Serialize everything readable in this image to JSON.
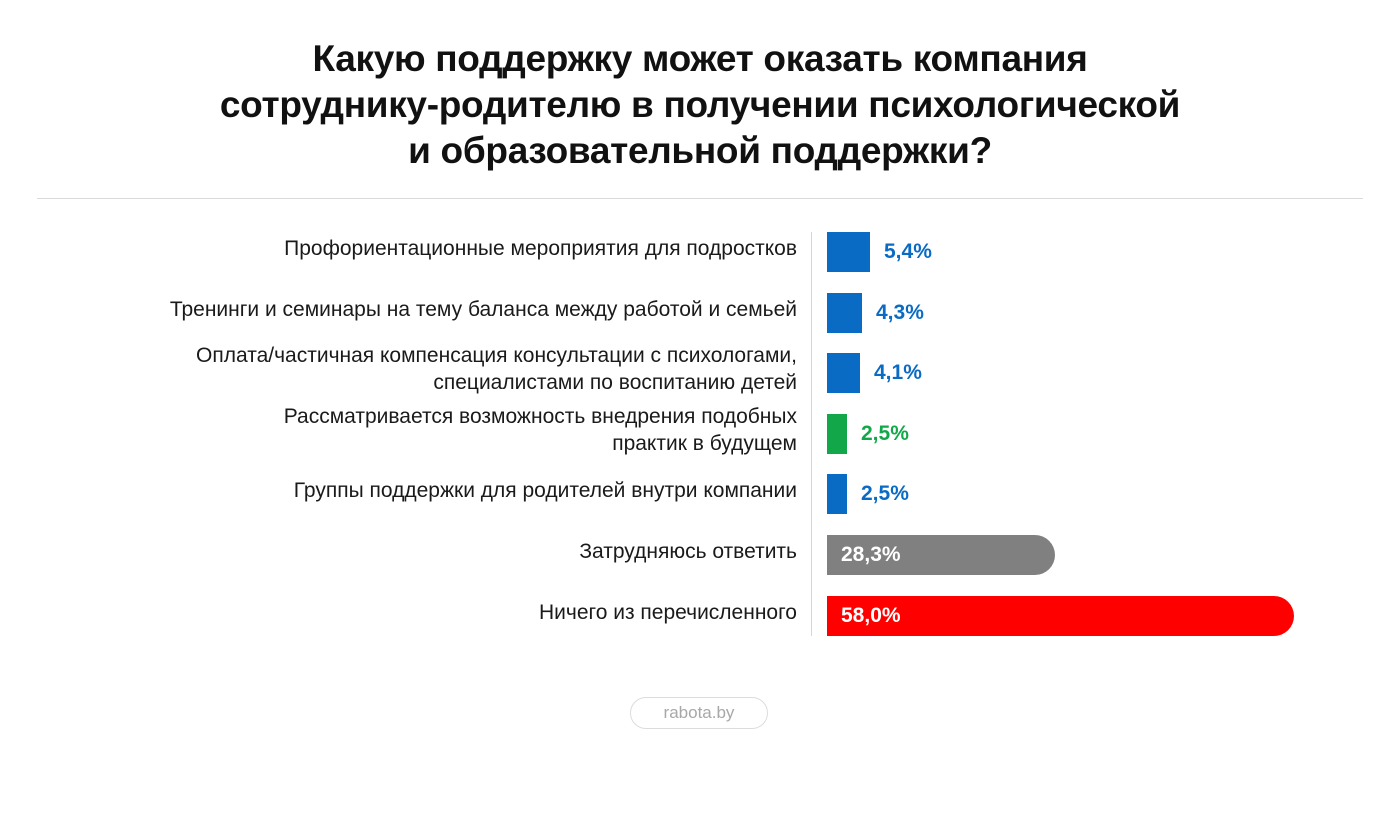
{
  "title_lines": [
    "Какую поддержку может оказать компания",
    "сотруднику-родителю в получении психологической",
    "и образовательной поддержки?"
  ],
  "chart_data": {
    "type": "bar",
    "orientation": "horizontal",
    "title": "Какую поддержку может оказать компания сотруднику-родителю в получении психологической и образовательной поддержки?",
    "unit": "%",
    "xlim": [
      0,
      58
    ],
    "grid": false,
    "categories": [
      [
        "Профориентационные мероприятия для подростков"
      ],
      [
        "Тренинги и семинары на тему баланса между работой и семьей"
      ],
      [
        "Оплата/частичная компенсация консультации с психологами,",
        "специалистами по воспитанию детей"
      ],
      [
        "Рассматривается возможность внедрения подобных",
        "практик в будущем"
      ],
      [
        "Группы поддержки для родителей внутри компании"
      ],
      [
        "Затрудняюсь ответить"
      ],
      [
        "Ничего из перечисленного"
      ]
    ],
    "values": [
      5.4,
      4.3,
      4.1,
      2.5,
      2.5,
      28.3,
      58.0
    ],
    "value_labels": [
      "5,4%",
      "4,3%",
      "4,1%",
      "2,5%",
      "2,5%",
      "28,3%",
      "58,0%"
    ],
    "colors": [
      "#0a6bc4",
      "#0a6bc4",
      "#0a6bc4",
      "#12a84a",
      "#0a6bc4",
      "#808080",
      "#ff0000"
    ]
  },
  "source": "rabota.by"
}
